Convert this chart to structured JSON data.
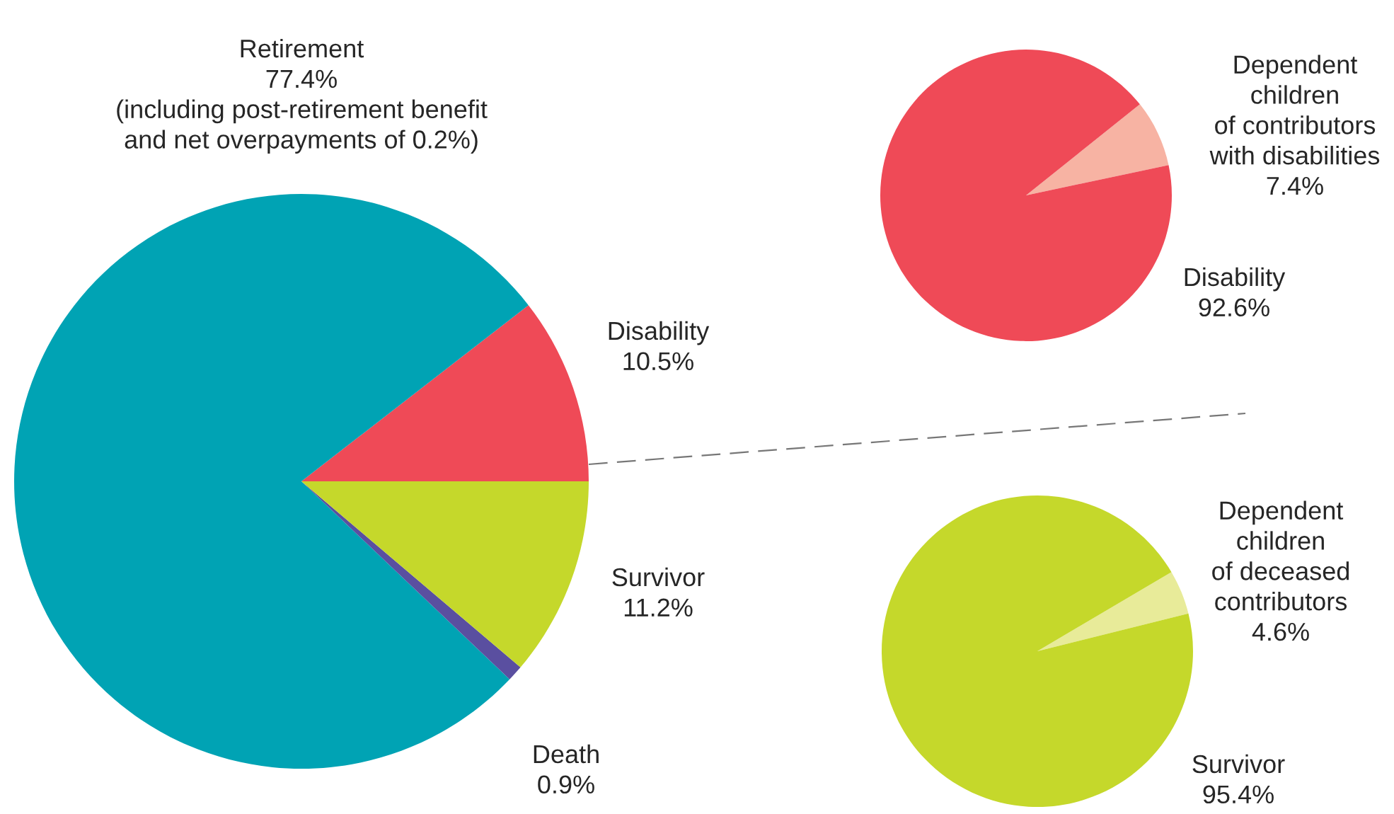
{
  "chart_data": [
    {
      "type": "pie",
      "categories": [
        "Disability",
        "Retirement",
        "Death",
        "Survivor"
      ],
      "values": [
        10.5,
        77.4,
        0.9,
        11.2
      ],
      "colors": [
        "#ef4a57",
        "#00a3b4",
        "#5a4fa0",
        "#c5d82b"
      ],
      "value_labels": [
        "10.5%",
        "77.4%",
        "0.9%",
        "11.2%"
      ],
      "annotations": [
        "(including post-retirement benefit\nand net overpayments of 0.2%)"
      ]
    },
    {
      "type": "pie",
      "categories": [
        "Dependent\nchildren\nof contributors\nwith disabilities",
        "Disability"
      ],
      "values": [
        7.4,
        92.6
      ],
      "colors": [
        "#f7b3a3",
        "#ef4a57"
      ],
      "value_labels": [
        "7.4%",
        "92.6%"
      ]
    },
    {
      "type": "pie",
      "categories": [
        "Dependent\nchildren\nof deceased\ncontributors",
        "Survivor"
      ],
      "values": [
        4.6,
        95.4
      ],
      "colors": [
        "#e8eb99",
        "#c5d82b"
      ],
      "value_labels": [
        "4.6%",
        "95.4%"
      ]
    }
  ]
}
